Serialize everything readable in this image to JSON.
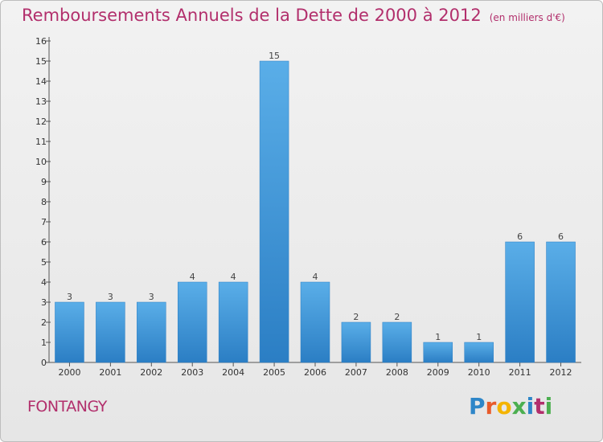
{
  "title": "Remboursements Annuels de la Dette de 2000 à 2012",
  "unit_note": "(en milliers d'€)",
  "commune": "FONTANGY",
  "logo": {
    "letters": [
      "P",
      "r",
      "o",
      "x",
      "i",
      "t",
      "i"
    ],
    "colors": [
      "#2e86c8",
      "#e85b2b",
      "#f4b400",
      "#4caf50",
      "#2e86c8",
      "#b22f6c",
      "#4caf50"
    ]
  },
  "colors": {
    "title": "#b22f6c",
    "bar_light": "#5aaee8",
    "bar_dark": "#2b7ec4"
  },
  "chart_data": {
    "type": "bar",
    "categories": [
      "2000",
      "2001",
      "2002",
      "2003",
      "2004",
      "2005",
      "2006",
      "2007",
      "2008",
      "2009",
      "2010",
      "2011",
      "2012"
    ],
    "values": [
      3,
      3,
      3,
      4,
      4,
      15,
      4,
      2,
      2,
      1,
      1,
      6,
      6
    ],
    "title": "Remboursements Annuels de la Dette de 2000 à 2012",
    "xlabel": "",
    "ylabel": "",
    "ylim": [
      0,
      16
    ],
    "yticks": [
      0,
      1,
      2,
      3,
      4,
      5,
      6,
      7,
      8,
      9,
      10,
      11,
      12,
      13,
      14,
      15,
      16
    ],
    "grid": false,
    "data_labels": true
  }
}
